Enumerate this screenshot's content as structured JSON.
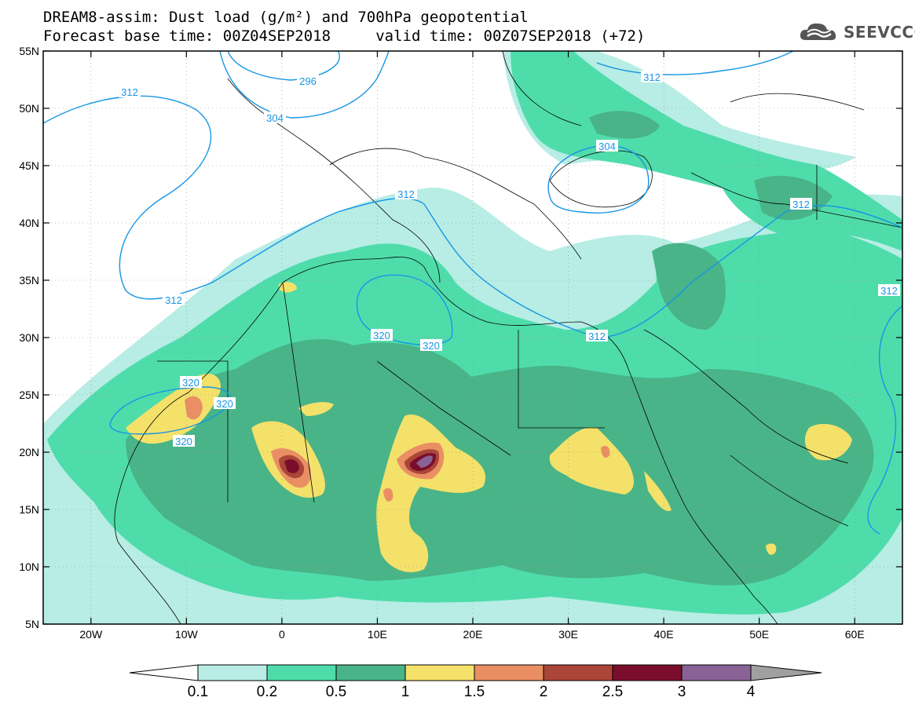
{
  "title": {
    "line1": "DREAM8-assim: Dust load (g/m²) and 700hPa geopotential",
    "line2": "Forecast base time: 00Z04SEP2018     valid time: 00Z07SEP2018 (+72)"
  },
  "brand": {
    "name": "SEEVCCC",
    "icon": "cloud-logo-icon"
  },
  "map": {
    "lat_ticks": [
      "55N",
      "50N",
      "45N",
      "40N",
      "35N",
      "30N",
      "25N",
      "20N",
      "15N",
      "10N",
      "5N"
    ],
    "lon_ticks": [
      "20W",
      "10W",
      "0",
      "10E",
      "20E",
      "30E",
      "40E",
      "50E",
      "60E"
    ],
    "contour_labels": [
      "312",
      "296",
      "304",
      "312",
      "304",
      "312",
      "312",
      "312",
      "312",
      "320",
      "320",
      "320",
      "320",
      "320",
      "312"
    ]
  },
  "colorbar": {
    "labels": [
      "0.1",
      "0.2",
      "0.5",
      "1",
      "1.5",
      "2",
      "2.5",
      "3",
      "4"
    ],
    "colors": [
      "#b7ede4",
      "#4fdcab",
      "#49b488",
      "#f4e16a",
      "#ea8f64",
      "#ab4537",
      "#7a0d2b",
      "#8a6396",
      "#a0a0a0"
    ],
    "under_color": "#ffffff"
  },
  "colors": {
    "contour": "#1696e6",
    "border": "#000000"
  }
}
